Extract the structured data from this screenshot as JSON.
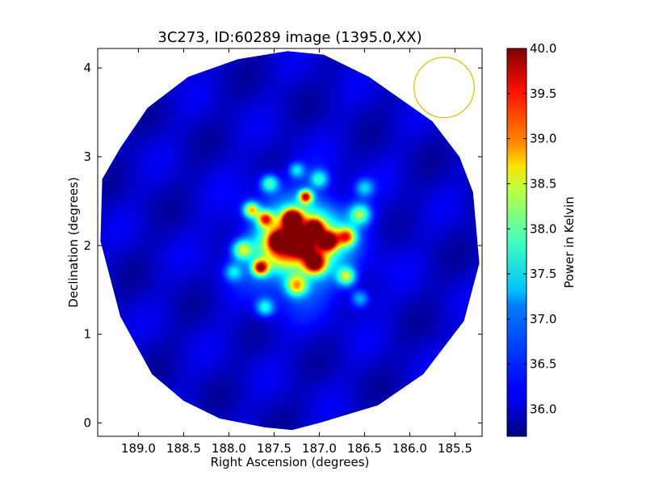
{
  "chart_data": {
    "type": "heatmap",
    "title": "3C273, ID:60289 image (1395.0,XX)",
    "xlabel": "Right Ascension (degrees)",
    "ylabel": "Declination (degrees)",
    "x_reversed": true,
    "xlim": [
      189.45,
      185.2
    ],
    "ylim": [
      -0.15,
      4.22
    ],
    "xticks": [
      189.0,
      188.5,
      188.0,
      187.5,
      187.0,
      186.5,
      186.0,
      185.5
    ],
    "xtick_labels": [
      "189.0",
      "188.5",
      "188.0",
      "187.5",
      "187.0",
      "186.5",
      "186.0",
      "185.5"
    ],
    "yticks": [
      0,
      1,
      2,
      3,
      4
    ],
    "ytick_labels": [
      "0",
      "1",
      "2",
      "3",
      "4"
    ],
    "colormap": "jet",
    "colorbar": {
      "label": "Power in Kelvin",
      "vmin": 35.7,
      "vmax": 40.0,
      "ticks": [
        36.0,
        36.5,
        37.0,
        37.5,
        38.0,
        38.5,
        39.0,
        39.5,
        40.0
      ],
      "tick_labels": [
        "36.0",
        "36.5",
        "37.0",
        "37.5",
        "38.0",
        "38.5",
        "39.0",
        "39.5",
        "40.0"
      ]
    },
    "background_level": 36.0,
    "blobs": [
      {
        "ra": 187.3,
        "dec": 2.3,
        "power": 40.0,
        "sigma": 0.07
      },
      {
        "ra": 187.45,
        "dec": 2.05,
        "power": 39.6,
        "sigma": 0.06
      },
      {
        "ra": 187.2,
        "dec": 2.0,
        "power": 39.5,
        "sigma": 0.07
      },
      {
        "ra": 187.05,
        "dec": 1.8,
        "power": 39.4,
        "sigma": 0.08
      },
      {
        "ra": 186.9,
        "dec": 2.05,
        "power": 39.5,
        "sigma": 0.07
      },
      {
        "ra": 187.05,
        "dec": 2.2,
        "power": 39.2,
        "sigma": 0.06
      },
      {
        "ra": 187.15,
        "dec": 2.55,
        "power": 39.3,
        "sigma": 0.05
      },
      {
        "ra": 187.65,
        "dec": 1.75,
        "power": 39.3,
        "sigma": 0.06
      },
      {
        "ra": 187.6,
        "dec": 2.3,
        "power": 38.6,
        "sigma": 0.06
      },
      {
        "ra": 187.75,
        "dec": 2.4,
        "power": 38.4,
        "sigma": 0.06
      },
      {
        "ra": 186.7,
        "dec": 2.1,
        "power": 38.5,
        "sigma": 0.07
      },
      {
        "ra": 187.25,
        "dec": 1.55,
        "power": 38.2,
        "sigma": 0.08
      },
      {
        "ra": 186.7,
        "dec": 1.65,
        "power": 37.9,
        "sigma": 0.07
      },
      {
        "ra": 187.85,
        "dec": 1.95,
        "power": 37.9,
        "sigma": 0.08
      },
      {
        "ra": 186.55,
        "dec": 2.35,
        "power": 37.7,
        "sigma": 0.08
      },
      {
        "ra": 187.55,
        "dec": 2.7,
        "power": 37.6,
        "sigma": 0.07
      },
      {
        "ra": 187.0,
        "dec": 2.75,
        "power": 37.3,
        "sigma": 0.07
      },
      {
        "ra": 186.5,
        "dec": 2.65,
        "power": 37.0,
        "sigma": 0.07
      },
      {
        "ra": 187.6,
        "dec": 1.3,
        "power": 37.3,
        "sigma": 0.07
      },
      {
        "ra": 187.95,
        "dec": 1.7,
        "power": 37.0,
        "sigma": 0.07
      },
      {
        "ra": 186.55,
        "dec": 1.4,
        "power": 37.0,
        "sigma": 0.07
      },
      {
        "ra": 187.25,
        "dec": 2.85,
        "power": 37.1,
        "sigma": 0.06
      },
      {
        "ra": 187.4,
        "dec": 2.0,
        "power": 38.5,
        "sigma": 0.18
      },
      {
        "ra": 187.1,
        "dec": 2.1,
        "power": 38.0,
        "sigma": 0.22
      },
      {
        "ra": 187.2,
        "dec": 2.0,
        "power": 37.0,
        "sigma": 0.45
      }
    ],
    "field_boundary": [
      [
        189.4,
        2.75
      ],
      [
        189.2,
        3.1
      ],
      [
        188.9,
        3.55
      ],
      [
        188.45,
        3.9
      ],
      [
        187.9,
        4.1
      ],
      [
        187.35,
        4.19
      ],
      [
        186.95,
        4.15
      ],
      [
        186.45,
        3.9
      ],
      [
        186.1,
        3.65
      ],
      [
        185.75,
        3.4
      ],
      [
        185.45,
        3.0
      ],
      [
        185.3,
        2.6
      ],
      [
        185.23,
        1.8
      ],
      [
        185.4,
        1.15
      ],
      [
        185.85,
        0.55
      ],
      [
        186.35,
        0.2
      ],
      [
        187.0,
        0.0
      ],
      [
        187.3,
        -0.08
      ],
      [
        187.6,
        -0.05
      ],
      [
        188.1,
        0.05
      ],
      [
        188.5,
        0.25
      ],
      [
        188.85,
        0.55
      ],
      [
        189.2,
        1.2
      ],
      [
        189.42,
        2.05
      ]
    ],
    "beam_circle": {
      "ra": 185.62,
      "dec": 3.78,
      "radius_deg": 0.34,
      "color": "#c8c800"
    },
    "colors": {
      "outside_field": "#ffffff",
      "axes": "#000000"
    }
  }
}
